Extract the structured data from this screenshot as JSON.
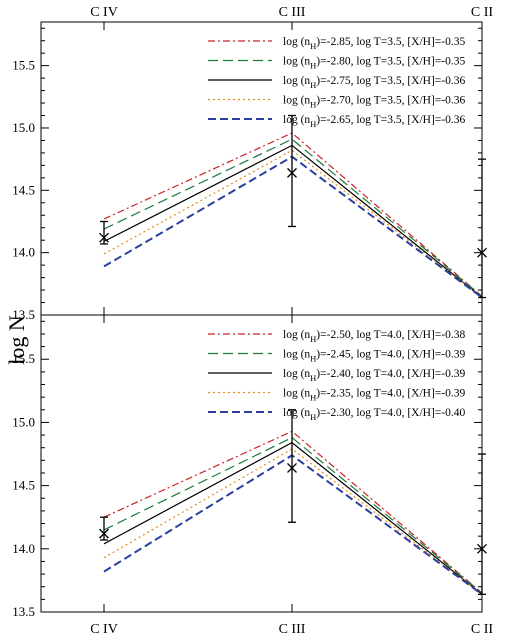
{
  "chart_data": [
    {
      "type": "line",
      "categories": [
        "C IV",
        "C III",
        "C II"
      ],
      "ylabel": "log N",
      "ylim": [
        13.5,
        15.85
      ],
      "yticks": [
        "13.5",
        "14.0",
        "14.5",
        "15.0",
        "15.5"
      ],
      "legend_position": "top-right",
      "series": [
        {
          "name": "log (n",
          "sub": "H",
          "rest": ")=-2.85, log T=3.5, [X/H]=-0.35",
          "color": "#cc2222",
          "dash": "7,3,2,3",
          "values": [
            14.27,
            14.96,
            13.65
          ]
        },
        {
          "name": "log (n",
          "sub": "H",
          "rest": ")=-2.80, log T=3.5, [X/H]=-0.35",
          "color": "#1a7a3a",
          "dash": "10,5",
          "values": [
            14.19,
            14.91,
            13.65
          ]
        },
        {
          "name": "log (n",
          "sub": "H",
          "rest": ")=-2.75, log T=3.5, [X/H]=-0.36",
          "color": "#000000",
          "dash": "",
          "values": [
            14.09,
            14.86,
            13.64
          ]
        },
        {
          "name": "log (n",
          "sub": "H",
          "rest": ")=-2.70, log T=3.5, [X/H]=-0.36",
          "color": "#e38a1a",
          "dash": "2,3",
          "values": [
            13.99,
            14.82,
            13.64
          ]
        },
        {
          "name": "log (n",
          "sub": "H",
          "rest": ")=-2.65, log T=3.5, [X/H]=-0.36",
          "color": "#2a3f9e",
          "dash": "8,4",
          "values": [
            13.89,
            14.77,
            13.64
          ]
        }
      ],
      "observations": [
        {
          "category": "C IV",
          "value": 14.12,
          "err_low": 14.07,
          "err_high": 14.25
        },
        {
          "category": "C III",
          "value": 14.64,
          "err_low": 14.21,
          "err_high": 15.1
        },
        {
          "category": "C II",
          "value": 14.0,
          "err_low": 13.64,
          "err_high": 14.75
        }
      ]
    },
    {
      "type": "line",
      "categories": [
        "C IV",
        "C III",
        "C II"
      ],
      "ylabel": "log N",
      "ylim": [
        13.5,
        15.85
      ],
      "yticks": [
        "13.5",
        "14.0",
        "14.5",
        "15.0",
        "15.5"
      ],
      "legend_position": "top-right",
      "series": [
        {
          "name": "log (n",
          "sub": "H",
          "rest": ")=-2.50, log T=4.0, [X/H]=-0.38",
          "color": "#cc2222",
          "dash": "7,3,2,3",
          "values": [
            14.25,
            14.93,
            13.65
          ]
        },
        {
          "name": "log (n",
          "sub": "H",
          "rest": ")=-2.45, log T=4.0, [X/H]=-0.39",
          "color": "#1a7a3a",
          "dash": "10,5",
          "values": [
            14.15,
            14.88,
            13.65
          ]
        },
        {
          "name": "log (n",
          "sub": "H",
          "rest": ")=-2.40, log T=4.0, [X/H]=-0.39",
          "color": "#000000",
          "dash": "",
          "values": [
            14.04,
            14.84,
            13.64
          ]
        },
        {
          "name": "log (n",
          "sub": "H",
          "rest": ")=-2.35, log T=4.0, [X/H]=-0.39",
          "color": "#e38a1a",
          "dash": "2,3",
          "values": [
            13.93,
            14.79,
            13.64
          ]
        },
        {
          "name": "log (n",
          "sub": "H",
          "rest": ")=-2.30, log T=4.0, [X/H]=-0.40",
          "color": "#2a3f9e",
          "dash": "8,4",
          "values": [
            13.82,
            14.74,
            13.64
          ]
        }
      ],
      "observations": [
        {
          "category": "C IV",
          "value": 14.12,
          "err_low": 14.07,
          "err_high": 14.25
        },
        {
          "category": "C III",
          "value": 14.64,
          "err_low": 14.21,
          "err_high": 15.1
        },
        {
          "category": "C II",
          "value": 14.0,
          "err_low": 13.64,
          "err_high": 14.75
        }
      ]
    }
  ]
}
